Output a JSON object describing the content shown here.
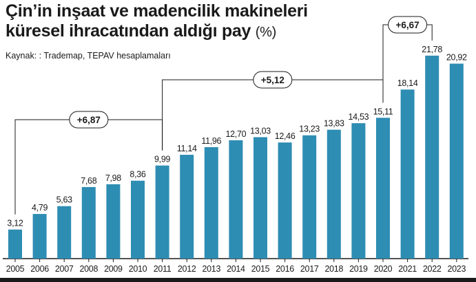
{
  "header": {
    "title_line1": "Çin’in inşaat ve madencilik makineleri",
    "title_line2": "küresel ihracatından aldığı pay",
    "unit": "(%)",
    "source": "Kaynak: : Trademap, TEPAV hesaplamaları"
  },
  "colors": {
    "bar": "#2e8db3",
    "text": "#1a1a1a",
    "axis": "#1a1a1a",
    "bracket": "#1a1a1a"
  },
  "chart_data": {
    "type": "bar",
    "title": "Çin’in inşaat ve madencilik makineleri küresel ihracatından aldığı pay (%)",
    "categories": [
      "2005",
      "2006",
      "2007",
      "2008",
      "2009",
      "2010",
      "2011",
      "2012",
      "2013",
      "2014",
      "2015",
      "2016",
      "2017",
      "2018",
      "2019",
      "2020",
      "2021",
      "2022",
      "2023"
    ],
    "values": [
      3.12,
      4.79,
      5.63,
      7.68,
      7.98,
      8.36,
      9.99,
      11.14,
      11.96,
      12.7,
      13.03,
      12.46,
      13.23,
      13.83,
      14.53,
      15.11,
      18.14,
      21.78,
      20.92
    ],
    "value_labels": [
      "3,12",
      "4,79",
      "5,63",
      "7,68",
      "7,98",
      "8,36",
      "9,99",
      "11,14",
      "11,96",
      "12,70",
      "13,03",
      "12,46",
      "13,23",
      "13,83",
      "14,53",
      "15,11",
      "18,14",
      "21,78",
      "20,92"
    ],
    "ylim": [
      0,
      22
    ],
    "grid": false,
    "xlabel": "",
    "ylabel": "",
    "annotations": [
      {
        "label": "+6,87",
        "from": "2005",
        "to": "2011"
      },
      {
        "label": "+5,12",
        "from": "2011",
        "to": "2020"
      },
      {
        "label": "+6,67",
        "from": "2020",
        "to": "2022"
      }
    ]
  }
}
